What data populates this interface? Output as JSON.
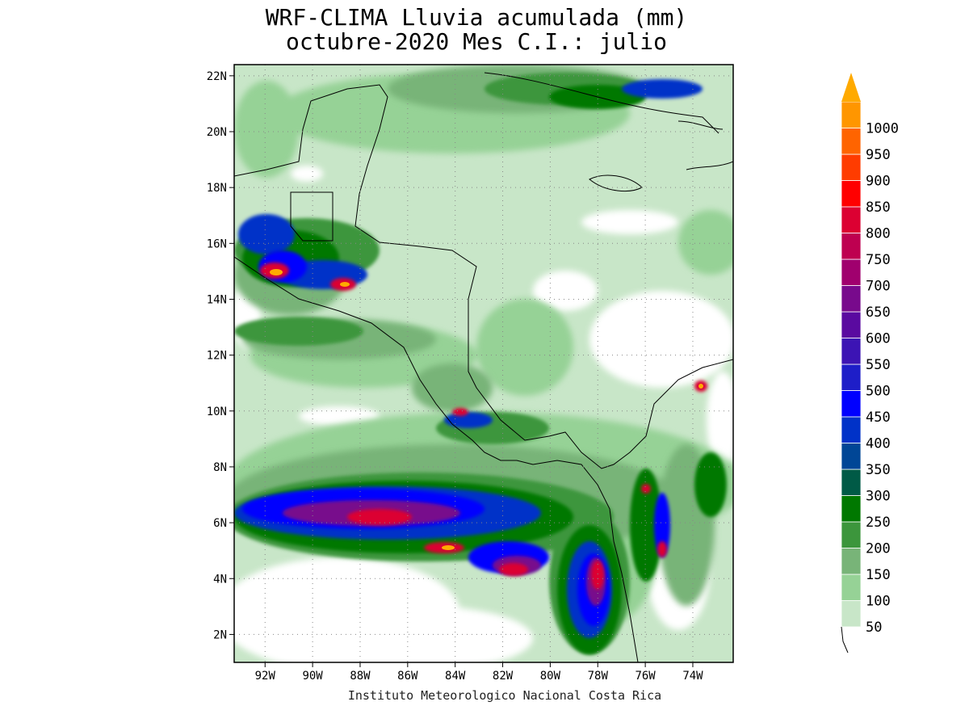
{
  "title": {
    "line1": "WRF-CLIMA Lluvia acumulada (mm)",
    "line2": "octubre-2020 Mes C.I.: julio"
  },
  "footer": "Instituto Meteorologico Nacional Costa Rica",
  "map": {
    "lon_range": [
      -93.3,
      -72.3
    ],
    "lat_range": [
      1.0,
      22.4
    ],
    "lat_ticks": [
      "22N",
      "20N",
      "18N",
      "16N",
      "14N",
      "12N",
      "10N",
      "8N",
      "6N",
      "4N",
      "2N"
    ],
    "lon_ticks": [
      "92W",
      "90W",
      "88W",
      "86W",
      "84W",
      "82W",
      "80W",
      "78W",
      "76W",
      "74W"
    ],
    "grid": "dotted"
  },
  "colorbar": {
    "levels": [
      "50",
      "100",
      "150",
      "200",
      "250",
      "300",
      "350",
      "400",
      "450",
      "500",
      "550",
      "600",
      "650",
      "700",
      "750",
      "800",
      "850",
      "900",
      "950",
      "1000"
    ],
    "colors": [
      "#c8e6c8",
      "#96d296",
      "#78b478",
      "#3c963c",
      "#007800",
      "#005a46",
      "#004696",
      "#0032c8",
      "#0000ff",
      "#1e1ec8",
      "#3c14b4",
      "#5a0aa0",
      "#780a8c",
      "#a0006e",
      "#be0050",
      "#dc0032",
      "#ff0000",
      "#ff3c00",
      "#ff6400",
      "#ff9600"
    ],
    "extend_max_color": "#ffaa00"
  }
}
